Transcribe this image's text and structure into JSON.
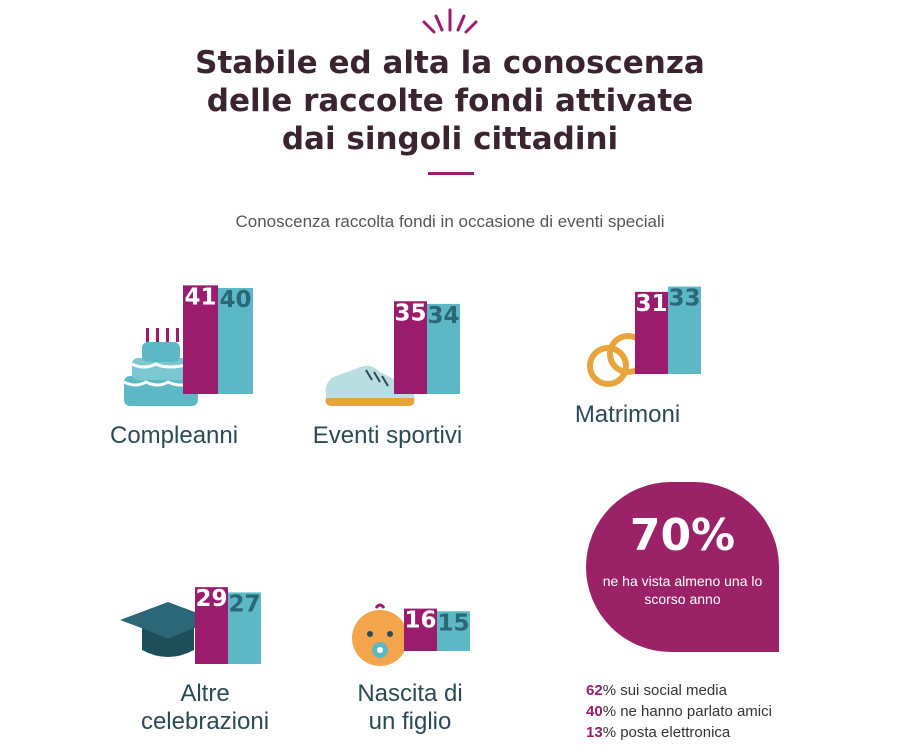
{
  "header": {
    "title_lines": [
      "Stabile ed alta la conoscenza",
      "delle raccolte fondi attivate",
      "dai singoli cittadini"
    ],
    "subtitle": "Conoscenza raccolta fondi in occasione di eventi speciali"
  },
  "colors": {
    "magenta": "#9b1b6c",
    "teal": "#5cb8c4",
    "title": "#3a2430"
  },
  "chart_data": {
    "type": "bar",
    "categories": [
      "Compleanni",
      "Eventi sportivi",
      "Matrimoni",
      "Altre celebrazioni",
      "Nascita di un figlio"
    ],
    "category_labels": [
      "Compleanni",
      "Eventi sportivi",
      "Matrimoni",
      "Altre\ncelebrazioni",
      "Nascita di\nun figlio"
    ],
    "series": [
      {
        "values": [
          41,
          35,
          31,
          29,
          16
        ]
      },
      {
        "values": [
          40,
          34,
          33,
          27,
          15
        ]
      }
    ],
    "icons": [
      "cake-icon",
      "sneaker-icon",
      "rings-icon",
      "graduation-cap-icon",
      "baby-icon"
    ]
  },
  "highlight": {
    "percent": "70%",
    "note": "ne ha vista almeno una lo scorso anno"
  },
  "stats": [
    {
      "num": "62",
      "text": "% sui social media"
    },
    {
      "num": "40",
      "text": "% ne hanno parlato amici"
    },
    {
      "num": "13",
      "text": "% posta elettronica"
    }
  ]
}
